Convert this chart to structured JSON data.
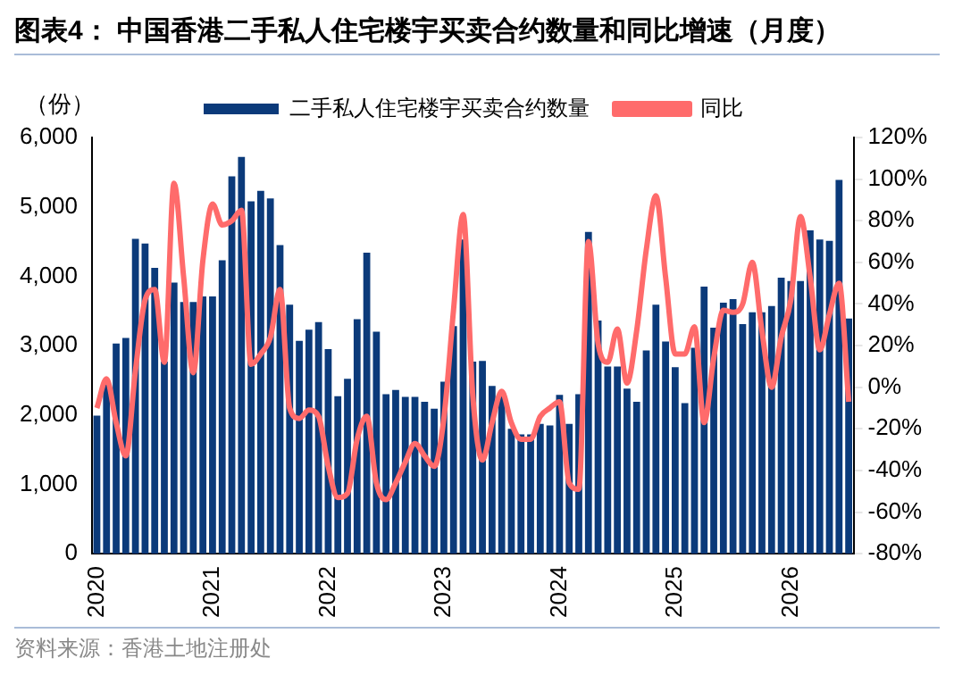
{
  "chart_data": {
    "type": "bar",
    "title": "图表4：  中国香港二手私人住宅楼宇买卖合约数量和同比增速（月度）",
    "ylabel": "（份）",
    "annotations": [
      "资料来源：香港土地注册处"
    ],
    "categories": [
      "2020",
      null,
      null,
      null,
      null,
      null,
      null,
      null,
      null,
      null,
      null,
      null,
      "2021",
      null,
      null,
      null,
      null,
      null,
      null,
      null,
      null,
      null,
      null,
      null,
      "2022",
      null,
      null,
      null,
      null,
      null,
      null,
      null,
      null,
      null,
      null,
      null,
      "2023",
      null,
      null,
      null,
      null,
      null,
      null,
      null,
      null,
      null,
      null,
      null,
      "2024",
      null,
      null,
      null,
      null,
      null,
      null,
      null,
      null,
      null,
      null,
      null,
      "2025",
      null,
      null,
      null,
      null,
      null,
      null,
      null,
      null,
      null,
      null,
      null,
      "2026",
      null,
      null,
      null,
      null,
      null,
      null
    ],
    "series": [
      {
        "name": "二手私人住宅楼宇买卖合约数量",
        "color": "#0b3a7a",
        "values": [
          1990,
          2440,
          3030,
          3110,
          4540,
          4470,
          4120,
          2770,
          3910,
          3630,
          3630,
          3710,
          3710,
          4230,
          5440,
          5720,
          5080,
          5230,
          5120,
          4450,
          3590,
          3070,
          3230,
          3340,
          2950,
          2270,
          2520,
          3380,
          4340,
          3200,
          2300,
          2360,
          2260,
          2260,
          2190,
          2090,
          2480,
          3280,
          4530,
          2770,
          2780,
          2420,
          2270,
          1800,
          1720,
          1720,
          1870,
          1850,
          2290,
          1870,
          2300,
          4640,
          3360,
          2700,
          2700,
          2380,
          2190,
          2930,
          3590,
          3060,
          2690,
          2170,
          2970,
          3850,
          3260,
          3620,
          3670,
          3310,
          3480,
          3480,
          3570,
          3980,
          3930,
          3930,
          4660,
          4530,
          4510,
          5390,
          3390
        ]
      },
      {
        "name": "同比",
        "type": "line",
        "axis": "y2",
        "color": "#ff6b6b",
        "marker": "none",
        "values": [
          -10,
          4,
          -17,
          -33,
          8,
          42,
          47,
          12,
          98,
          53,
          7,
          61,
          88,
          78,
          80,
          85,
          11,
          16,
          24,
          47,
          -10,
          -15,
          -11,
          -14,
          -38,
          -53,
          -51,
          -25,
          -14,
          -46,
          -54,
          -46,
          -36,
          -27,
          -33,
          -38,
          -15,
          37,
          83,
          -4,
          -35,
          -17,
          -2,
          -17,
          -25,
          -25,
          -14,
          -10,
          -7,
          -46,
          -49,
          70,
          21,
          12,
          28,
          2,
          27,
          66,
          92,
          53,
          16,
          16,
          29,
          -17,
          14,
          37,
          36,
          40,
          60,
          27,
          0,
          24,
          42,
          82,
          53,
          18,
          35,
          50,
          -7
        ]
      }
    ],
    "ylim": [
      0,
      6000
    ],
    "yticks": [
      0,
      {
        "value": 1000,
        "label": "1,000"
      },
      {
        "value": 2000,
        "label": "2,000"
      },
      {
        "value": 3000,
        "label": "3,000"
      },
      {
        "value": 4000,
        "label": "4,000"
      },
      {
        "value": 5000,
        "label": "5,000"
      },
      {
        "value": 6000,
        "label": "6,000"
      }
    ],
    "y2lim": [
      -80,
      120
    ],
    "y2ticks": [
      {
        "value": -80,
        "label": "-80%"
      },
      {
        "value": -60,
        "label": "-60%"
      },
      {
        "value": -40,
        "label": "-40%"
      },
      {
        "value": -20,
        "label": "-20%"
      },
      {
        "value": 0,
        "label": "0%"
      },
      {
        "value": 20,
        "label": "20%"
      },
      {
        "value": 40,
        "label": "40%"
      },
      {
        "value": 60,
        "label": "60%"
      },
      {
        "value": 80,
        "label": "80%"
      },
      {
        "value": 100,
        "label": "100%"
      },
      {
        "value": 120,
        "label": "120%"
      }
    ],
    "grid": false,
    "legend": "top"
  }
}
